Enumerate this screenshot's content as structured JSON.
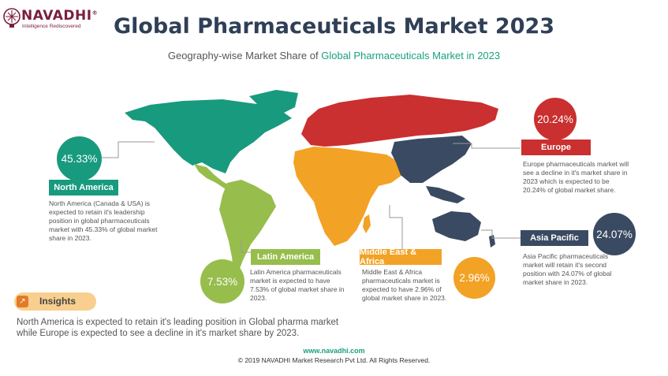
{
  "brand": {
    "name": "NAVADHI",
    "reg": "®",
    "tagline": "Intelligence Rediscovered"
  },
  "header": {
    "title": "Global Pharmaceuticals Market 2023",
    "subtitle_prefix": "Geography-wise Market Share of ",
    "subtitle_highlight": "Global Pharmaceuticals Market in 2023"
  },
  "colors": {
    "north_america": "#189a7e",
    "latin_america": "#97bd4c",
    "europe": "#c9302f",
    "middle_east_africa": "#f2a225",
    "asia_pacific": "#3a4a62",
    "accent": "#1aa17d"
  },
  "chart_data": {
    "type": "map",
    "title": "Global Pharmaceuticals Market 2023",
    "unit": "%",
    "series": [
      {
        "name": "North America",
        "value": 45.33,
        "value_label": "45.33%",
        "description": "North America (Canada & USA) is expected to retain it's leadership position in global pharmaceuticals market with 45.33% of global market share in 2023."
      },
      {
        "name": "Latin America",
        "value": 7.53,
        "value_label": "7.53%",
        "description": "Latin America pharmaceuticals market is expected to have 7.53% of global market share in 2023."
      },
      {
        "name": "Europe",
        "value": 20.24,
        "value_label": "20.24%",
        "description": "Europe pharmaceuticals market will see a decline in it's market share in 2023 which is expected to be 20.24% of global market share."
      },
      {
        "name": "Middle East & Africa",
        "value": 2.96,
        "value_label": "2.96%",
        "description": "Middle East & Africa pharmaceuticals market is expected to have 2.96% of global market share in 2023."
      },
      {
        "name": "Asia Pacific",
        "value": 24.07,
        "value_label": "24.07%",
        "description": "Asia Pacific pharmaceuticals market will retain it's second position with 24.07% of global market share in 2023."
      }
    ]
  },
  "insights": {
    "label": "Insights",
    "text": "North America is expected to retain it's leading position in Global pharma market while Europe is expected to see a decline in it's market share by 2023."
  },
  "footer": {
    "url": "www.navadhi.com",
    "copyright": "© 2019 NAVADHI Market Research Pvt Ltd. All Rights Reserved."
  }
}
